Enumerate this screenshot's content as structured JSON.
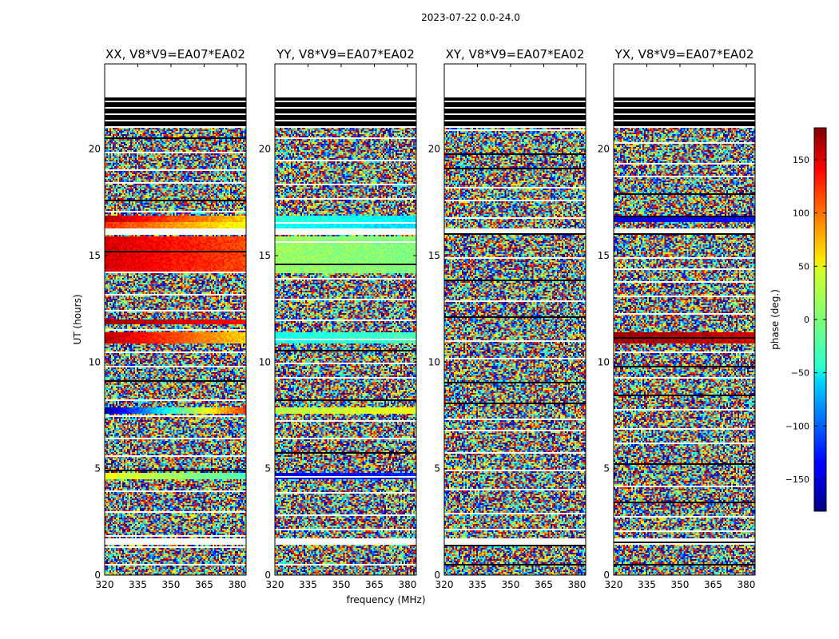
{
  "figure": {
    "suptitle": "2023-07-22 0.0-24.0"
  },
  "chart_data": {
    "type": "heatmap",
    "title": "2023-07-22 0.0-24.0",
    "xlabel": "frequency (MHz)",
    "ylabel": "UT (hours)",
    "xlim": [
      320,
      384
    ],
    "ylim": [
      0,
      24
    ],
    "x_ticks": [
      320,
      335,
      350,
      365,
      380
    ],
    "y_ticks": [
      0,
      5,
      10,
      15,
      20
    ],
    "panels": [
      {
        "name": "XX",
        "title": "XX, V8*V9=EA07*EA02"
      },
      {
        "name": "YY",
        "title": "YY, V8*V9=EA07*EA02"
      },
      {
        "name": "XY",
        "title": "XY, V8*V9=EA07*EA02"
      },
      {
        "name": "YX",
        "title": "YX, V8*V9=EA07*EA02"
      }
    ],
    "colorbar": {
      "label": "phase (deg.)",
      "range": [
        -180,
        180
      ],
      "ticks": [
        150,
        100,
        50,
        0,
        -50,
        -100,
        -150
      ],
      "tick_labels": [
        "150",
        "100",
        "50",
        "0",
        "−50",
        "−100",
        "−150"
      ],
      "colormap": "jet"
    },
    "flagged_hours": [
      [
        22.4,
        24.0
      ],
      [
        1.4,
        1.7
      ],
      [
        16.0,
        16.3
      ]
    ],
    "dark_band_hours": [
      21.0,
      22.4
    ],
    "coherent_bands": [
      {
        "panels": [
          "XX"
        ],
        "from": 16.6,
        "to": 16.9,
        "phase_start": 160,
        "phase_end": 60
      },
      {
        "panels": [
          "XX"
        ],
        "from": 16.3,
        "to": 16.6,
        "phase_start": 120,
        "phase_end": 40
      },
      {
        "panels": [
          "XX"
        ],
        "from": 14.2,
        "to": 15.9,
        "phase_start": 150,
        "phase_end": 110
      },
      {
        "panels": [
          "XX"
        ],
        "from": 11.8,
        "to": 12.0,
        "phase_start": 170,
        "phase_end": 130
      },
      {
        "panels": [
          "XX"
        ],
        "from": 10.9,
        "to": 11.4,
        "phase_start": 160,
        "phase_end": 60
      },
      {
        "panels": [
          "XX"
        ],
        "from": 7.6,
        "to": 7.9,
        "phase_start": -170,
        "phase_end": 120
      },
      {
        "panels": [
          "XX"
        ],
        "from": 4.5,
        "to": 4.8,
        "phase_start": 40,
        "phase_end": -20
      },
      {
        "panels": [
          "YY"
        ],
        "from": 16.6,
        "to": 16.9,
        "phase_start": -30,
        "phase_end": -50
      },
      {
        "panels": [
          "YY"
        ],
        "from": 16.3,
        "to": 16.6,
        "phase_start": -40,
        "phase_end": -60
      },
      {
        "panels": [
          "YY"
        ],
        "from": 14.2,
        "to": 15.9,
        "phase_start": 10,
        "phase_end": 0
      },
      {
        "panels": [
          "YY"
        ],
        "from": 10.9,
        "to": 11.4,
        "phase_start": -40,
        "phase_end": -20
      },
      {
        "panels": [
          "YY"
        ],
        "from": 7.6,
        "to": 7.9,
        "phase_start": 20,
        "phase_end": 40
      },
      {
        "panels": [
          "YY"
        ],
        "from": 4.5,
        "to": 4.8,
        "phase_start": -140,
        "phase_end": -120
      },
      {
        "panels": [
          "YX"
        ],
        "from": 16.6,
        "to": 16.9,
        "phase_start": -150,
        "phase_end": -130
      },
      {
        "panels": [
          "YX"
        ],
        "from": 10.9,
        "to": 11.4,
        "phase_start": 170,
        "phase_end": 150
      }
    ]
  }
}
